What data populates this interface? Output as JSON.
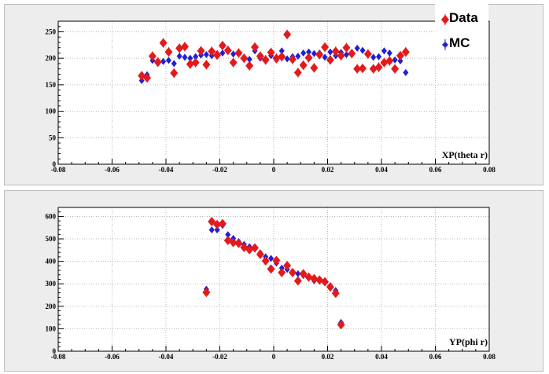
{
  "colors": {
    "data": "#e31a1c",
    "mc": "#1f1fd6",
    "axis": "#000000",
    "grid": "#b8b8b8",
    "pad_bg": "#ededed",
    "frame_bg": "#ffffff"
  },
  "legend": {
    "entries": [
      {
        "label": "Data",
        "marker": "diamond-red"
      },
      {
        "label": "MC",
        "marker": "diamond-blue"
      }
    ]
  },
  "chart_data": [
    {
      "type": "scatter",
      "xlabel": "XP(theta r)",
      "ylabel": "",
      "xlim": [
        -0.08,
        0.08
      ],
      "ylim": [
        0,
        270
      ],
      "xticks": [
        "-0.08",
        "-0.06",
        "-0.04",
        "-0.02",
        "0",
        "0.02",
        "0.04",
        "0.06",
        "0.08"
      ],
      "yticks": [
        "0",
        "50",
        "100",
        "150",
        "200",
        "250"
      ],
      "grid": true,
      "series": [
        {
          "name": "Data",
          "x": [
            -0.049,
            -0.047,
            -0.045,
            -0.043,
            -0.041,
            -0.039,
            -0.037,
            -0.035,
            -0.033,
            -0.031,
            -0.029,
            -0.027,
            -0.025,
            -0.023,
            -0.021,
            -0.019,
            -0.017,
            -0.015,
            -0.013,
            -0.011,
            -0.009,
            -0.007,
            -0.005,
            -0.003,
            -0.001,
            0.001,
            0.003,
            0.005,
            0.007,
            0.009,
            0.011,
            0.013,
            0.015,
            0.017,
            0.019,
            0.021,
            0.023,
            0.025,
            0.027,
            0.029,
            0.031,
            0.033,
            0.035,
            0.037,
            0.039,
            0.041,
            0.043,
            0.045,
            0.047,
            0.049
          ],
          "y": [
            167,
            163,
            204,
            193,
            229,
            212,
            172,
            219,
            222,
            189,
            192,
            214,
            188,
            213,
            206,
            224,
            215,
            192,
            210,
            200,
            186,
            221,
            204,
            197,
            211,
            200,
            203,
            245,
            198,
            173,
            187,
            201,
            182,
            207,
            221,
            197,
            213,
            205,
            220,
            209,
            180,
            181,
            208,
            180,
            183,
            192,
            195,
            180,
            205,
            212
          ],
          "yerr": [
            9,
            9,
            9,
            9,
            9,
            9,
            9,
            9,
            9,
            9,
            9,
            9,
            9,
            9,
            9,
            9,
            9,
            9,
            9,
            9,
            9,
            9,
            9,
            9,
            9,
            9,
            9,
            9,
            9,
            9,
            9,
            9,
            9,
            9,
            9,
            9,
            9,
            9,
            9,
            9,
            9,
            9,
            9,
            9,
            9,
            9,
            9,
            9,
            9,
            9
          ]
        },
        {
          "name": "MC",
          "x": [
            -0.049,
            -0.047,
            -0.045,
            -0.043,
            -0.041,
            -0.039,
            -0.037,
            -0.035,
            -0.033,
            -0.031,
            -0.029,
            -0.027,
            -0.025,
            -0.023,
            -0.021,
            -0.019,
            -0.017,
            -0.015,
            -0.013,
            -0.011,
            -0.009,
            -0.007,
            -0.005,
            -0.003,
            -0.001,
            0.001,
            0.003,
            0.005,
            0.007,
            0.009,
            0.011,
            0.013,
            0.015,
            0.017,
            0.019,
            0.021,
            0.023,
            0.025,
            0.027,
            0.029,
            0.031,
            0.033,
            0.035,
            0.037,
            0.039,
            0.041,
            0.043,
            0.045,
            0.047,
            0.049
          ],
          "y": [
            158,
            169,
            196,
            190,
            194,
            196,
            190,
            204,
            202,
            200,
            203,
            206,
            207,
            205,
            209,
            210,
            214,
            208,
            210,
            199,
            198,
            214,
            200,
            197,
            205,
            197,
            214,
            199,
            203,
            204,
            210,
            212,
            209,
            210,
            202,
            212,
            205,
            211,
            207,
            210,
            219,
            215,
            210,
            202,
            203,
            214,
            210,
            197,
            195,
            173
          ],
          "yerr": [
            3,
            3,
            3,
            3,
            3,
            3,
            3,
            3,
            3,
            3,
            3,
            3,
            3,
            3,
            3,
            3,
            3,
            3,
            3,
            3,
            3,
            3,
            3,
            3,
            3,
            3,
            3,
            3,
            3,
            3,
            3,
            3,
            3,
            3,
            3,
            3,
            3,
            3,
            3,
            3,
            3,
            3,
            3,
            3,
            3,
            3,
            3,
            3,
            3,
            3
          ]
        }
      ]
    },
    {
      "type": "scatter",
      "xlabel": "YP(phi r)",
      "ylabel": "",
      "xlim": [
        -0.08,
        0.08
      ],
      "ylim": [
        0,
        640
      ],
      "xticks": [
        "-0.08",
        "-0.06",
        "-0.04",
        "-0.02",
        "0",
        "0.02",
        "0.04",
        "0.06",
        "0.08"
      ],
      "yticks": [
        "0",
        "100",
        "200",
        "300",
        "400",
        "500",
        "600"
      ],
      "grid": true,
      "series": [
        {
          "name": "Data",
          "x": [
            -0.025,
            -0.023,
            -0.021,
            -0.019,
            -0.017,
            -0.015,
            -0.013,
            -0.011,
            -0.009,
            -0.007,
            -0.005,
            -0.003,
            -0.001,
            0.001,
            0.003,
            0.005,
            0.007,
            0.009,
            0.011,
            0.013,
            0.015,
            0.017,
            0.019,
            0.021,
            0.023,
            0.025
          ],
          "y": [
            262,
            577,
            564,
            568,
            493,
            484,
            480,
            462,
            452,
            460,
            431,
            402,
            366,
            404,
            350,
            381,
            350,
            313,
            345,
            330,
            323,
            317,
            309,
            286,
            258,
            118
          ],
          "yerr": [
            12,
            12,
            12,
            12,
            12,
            12,
            12,
            12,
            12,
            12,
            12,
            12,
            12,
            12,
            12,
            12,
            12,
            12,
            12,
            12,
            12,
            12,
            12,
            12,
            12,
            12
          ]
        },
        {
          "name": "MC",
          "x": [
            -0.025,
            -0.023,
            -0.021,
            -0.019,
            -0.017,
            -0.015,
            -0.013,
            -0.011,
            -0.009,
            -0.007,
            -0.005,
            -0.003,
            -0.001,
            0.001,
            0.003,
            0.005,
            0.007,
            0.009,
            0.011,
            0.013,
            0.015,
            0.017,
            0.019,
            0.021,
            0.023,
            0.025
          ],
          "y": [
            276,
            540,
            540,
            560,
            519,
            502,
            488,
            475,
            465,
            455,
            438,
            420,
            413,
            392,
            370,
            364,
            352,
            345,
            337,
            327,
            314,
            312,
            305,
            292,
            270,
            128
          ],
          "yerr": [
            4,
            4,
            4,
            4,
            4,
            4,
            4,
            4,
            4,
            4,
            4,
            4,
            4,
            4,
            4,
            4,
            4,
            4,
            4,
            4,
            4,
            4,
            4,
            4,
            4,
            4
          ]
        }
      ]
    }
  ]
}
